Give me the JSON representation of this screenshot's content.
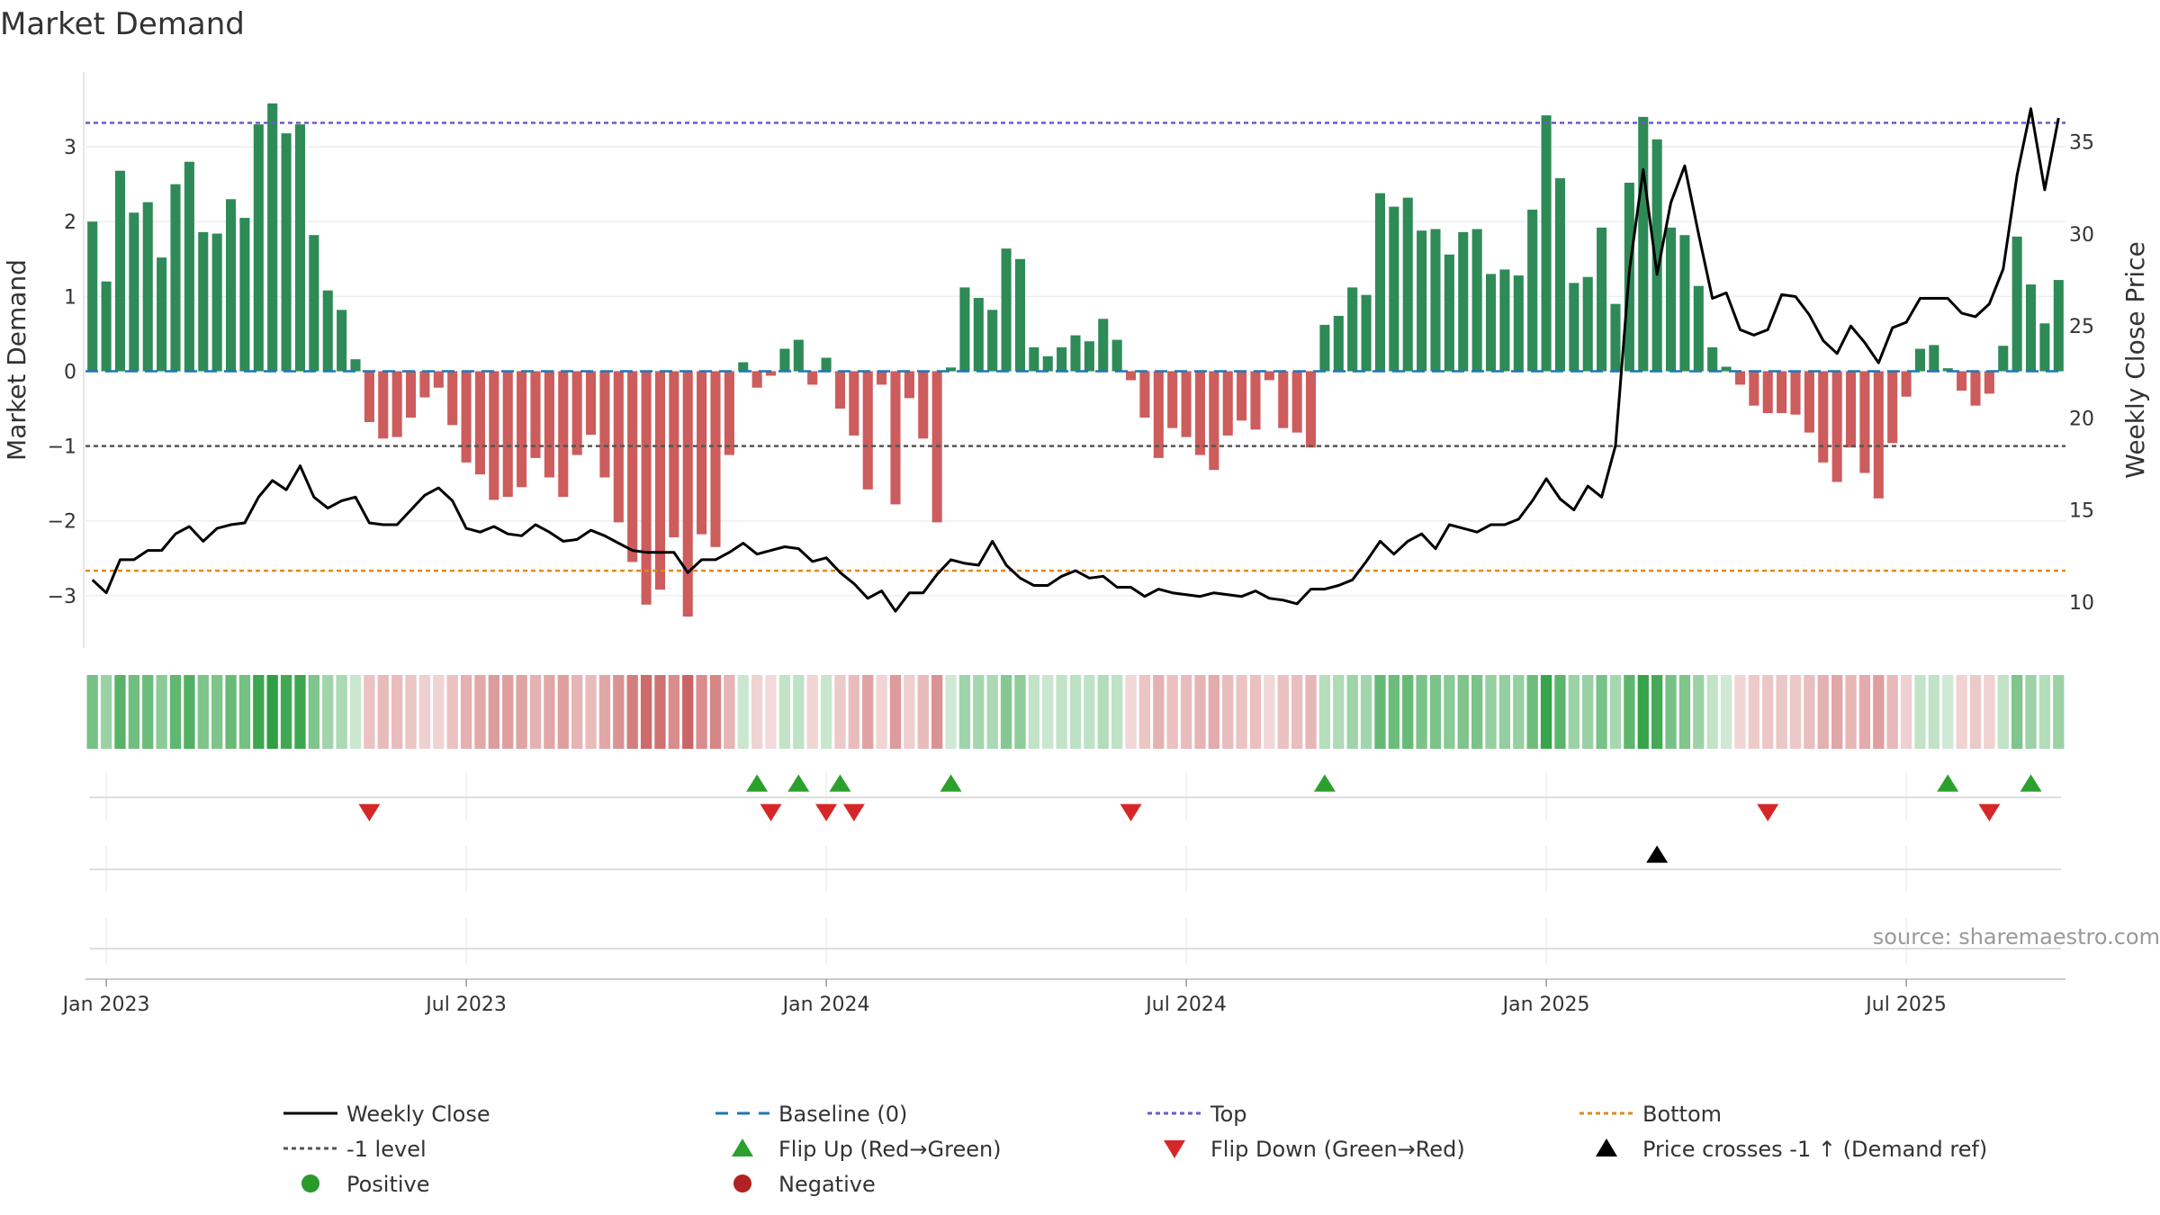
{
  "chart_data": {
    "type": "bar+line",
    "title": "Market Demand",
    "ylabel_left": "Market Demand",
    "ylabel_right": "Weekly Close Price",
    "ylim_left": [
      -3.7,
      4.0
    ],
    "ylim_right": [
      7.5,
      38.8
    ],
    "yticks_left": [
      "3",
      "2",
      "1",
      "0",
      "−1",
      "−2",
      "−3"
    ],
    "yticks_right": [
      "35",
      "30",
      "25",
      "20",
      "15",
      "10"
    ],
    "x_tick_labels": [
      "Jan 2023",
      "Jul 2023",
      "Jan 2024",
      "Jul 2024",
      "Jan 2025",
      "Jul 2025"
    ],
    "week_start": "2022-12-26",
    "x_tick_week_index": [
      1,
      27,
      53,
      79,
      105,
      131
    ],
    "reference_levels": {
      "top": 3.32,
      "minus_one": -1.0,
      "bottom_price": 11.7,
      "baseline": 0
    },
    "demand": [
      2.0,
      1.2,
      2.68,
      2.12,
      2.26,
      1.52,
      2.5,
      2.8,
      1.86,
      1.84,
      2.3,
      2.05,
      3.3,
      3.58,
      3.18,
      3.3,
      1.82,
      1.08,
      0.82,
      0.16,
      -0.68,
      -0.9,
      -0.88,
      -0.62,
      -0.35,
      -0.22,
      -0.72,
      -1.22,
      -1.38,
      -1.72,
      -1.68,
      -1.55,
      -1.16,
      -1.42,
      -1.68,
      -1.12,
      -0.85,
      -1.42,
      -2.02,
      -2.55,
      -3.12,
      -2.92,
      -2.22,
      -3.28,
      -2.18,
      -2.35,
      -1.12,
      0.12,
      -0.22,
      -0.06,
      0.3,
      0.42,
      -0.18,
      0.18,
      -0.5,
      -0.86,
      -1.58,
      -0.18,
      -1.78,
      -0.36,
      -0.9,
      -2.02,
      0.05,
      1.12,
      0.98,
      0.82,
      1.64,
      1.5,
      0.32,
      0.2,
      0.32,
      0.48,
      0.4,
      0.7,
      0.42,
      -0.12,
      -0.62,
      -1.16,
      -0.76,
      -0.88,
      -1.12,
      -1.32,
      -0.86,
      -0.66,
      -0.78,
      -0.12,
      -0.76,
      -0.82,
      -1.02,
      0.62,
      0.74,
      1.12,
      1.02,
      2.38,
      2.2,
      2.32,
      1.88,
      1.9,
      1.56,
      1.86,
      1.9,
      1.3,
      1.36,
      1.28,
      2.16,
      3.42,
      2.58,
      1.18,
      1.26,
      1.92,
      0.9,
      2.52,
      3.4,
      3.1,
      1.92,
      1.82,
      1.14,
      0.32,
      0.06,
      -0.18,
      -0.46,
      -0.56,
      -0.56,
      -0.58,
      -0.82,
      -1.22,
      -1.48,
      -1.02,
      -1.36,
      -1.7,
      -0.96,
      -0.34,
      0.3,
      0.35,
      0.04,
      -0.26,
      -0.46,
      -0.3,
      0.34,
      1.8,
      1.16,
      0.64,
      1.22
    ],
    "price": [
      11.2,
      10.5,
      12.3,
      12.3,
      12.8,
      12.8,
      13.7,
      14.1,
      13.3,
      14.0,
      14.2,
      14.3,
      15.7,
      16.6,
      16.1,
      17.4,
      15.7,
      15.1,
      15.5,
      15.7,
      14.3,
      14.2,
      14.2,
      15.0,
      15.8,
      16.2,
      15.5,
      14.0,
      13.8,
      14.1,
      13.7,
      13.6,
      14.2,
      13.8,
      13.3,
      13.4,
      13.9,
      13.6,
      13.2,
      12.8,
      12.7,
      12.7,
      12.7,
      11.6,
      12.3,
      12.3,
      12.7,
      13.2,
      12.6,
      12.8,
      13.0,
      12.9,
      12.2,
      12.4,
      11.6,
      11.0,
      10.2,
      10.6,
      9.5,
      10.5,
      10.5,
      11.5,
      12.3,
      12.1,
      12.0,
      13.3,
      12.0,
      11.3,
      10.9,
      10.9,
      11.4,
      11.7,
      11.3,
      11.4,
      10.8,
      10.8,
      10.3,
      10.7,
      10.5,
      10.4,
      10.3,
      10.5,
      10.4,
      10.3,
      10.6,
      10.2,
      10.1,
      9.9,
      10.7,
      10.7,
      10.9,
      11.2,
      12.2,
      13.3,
      12.6,
      13.3,
      13.7,
      12.9,
      14.2,
      14.0,
      13.8,
      14.2,
      14.2,
      14.5,
      15.5,
      16.7,
      15.6,
      15.0,
      16.3,
      15.7,
      18.5,
      28.0,
      33.5,
      27.8,
      31.7,
      33.7,
      30.0,
      26.5,
      26.8,
      24.8,
      24.5,
      24.8,
      26.7,
      26.6,
      25.6,
      24.2,
      23.5,
      25.0,
      24.1,
      23.0,
      24.9,
      25.2,
      26.5,
      26.5,
      26.5,
      25.7,
      25.5,
      26.2,
      28.1,
      33.2,
      36.8,
      32.4,
      36.3
    ],
    "flip_up_weeks": [
      48,
      51,
      54,
      62,
      89,
      134,
      140
    ],
    "flip_down_weeks": [
      20,
      49,
      53,
      55,
      75,
      121,
      137
    ],
    "price_cross_up_weeks": [
      113
    ],
    "source_text": "source: sharemaestro.com",
    "legend": [
      {
        "label": "Weekly Close",
        "marker": "line",
        "color": "#000000"
      },
      {
        "label": "Baseline (0)",
        "marker": "dashed-line",
        "color": "#1f77b4"
      },
      {
        "label": "Top",
        "marker": "dotted-line",
        "color": "#6a5acd"
      },
      {
        "label": "Bottom",
        "marker": "dotted-line",
        "color": "#e08a1e"
      },
      {
        "label": "-1 level",
        "marker": "dotted-line",
        "color": "#555555"
      },
      {
        "label": "Flip Up (Red→Green)",
        "marker": "triangle-up",
        "color": "#2ca02c"
      },
      {
        "label": "Flip Down (Green→Red)",
        "marker": "triangle-down",
        "color": "#d62728"
      },
      {
        "label": "Price crosses -1 ↑ (Demand ref)",
        "marker": "triangle-up",
        "color": "#000000"
      },
      {
        "label": "Positive",
        "marker": "circle",
        "color": "#2a9a2a"
      },
      {
        "label": "Negative",
        "marker": "circle",
        "color": "#b22222"
      }
    ],
    "colors": {
      "positive_bar": "#2e8b57",
      "negative_bar": "#cd5c5c",
      "price_line": "#000000",
      "top_line": "#6a5acd",
      "minus_one_line": "#555555",
      "bottom_line": "#e08a1e",
      "baseline": "#1f77b4",
      "flip_up": "#2ca02c",
      "flip_down": "#d62728",
      "cross_up": "#000000"
    }
  }
}
